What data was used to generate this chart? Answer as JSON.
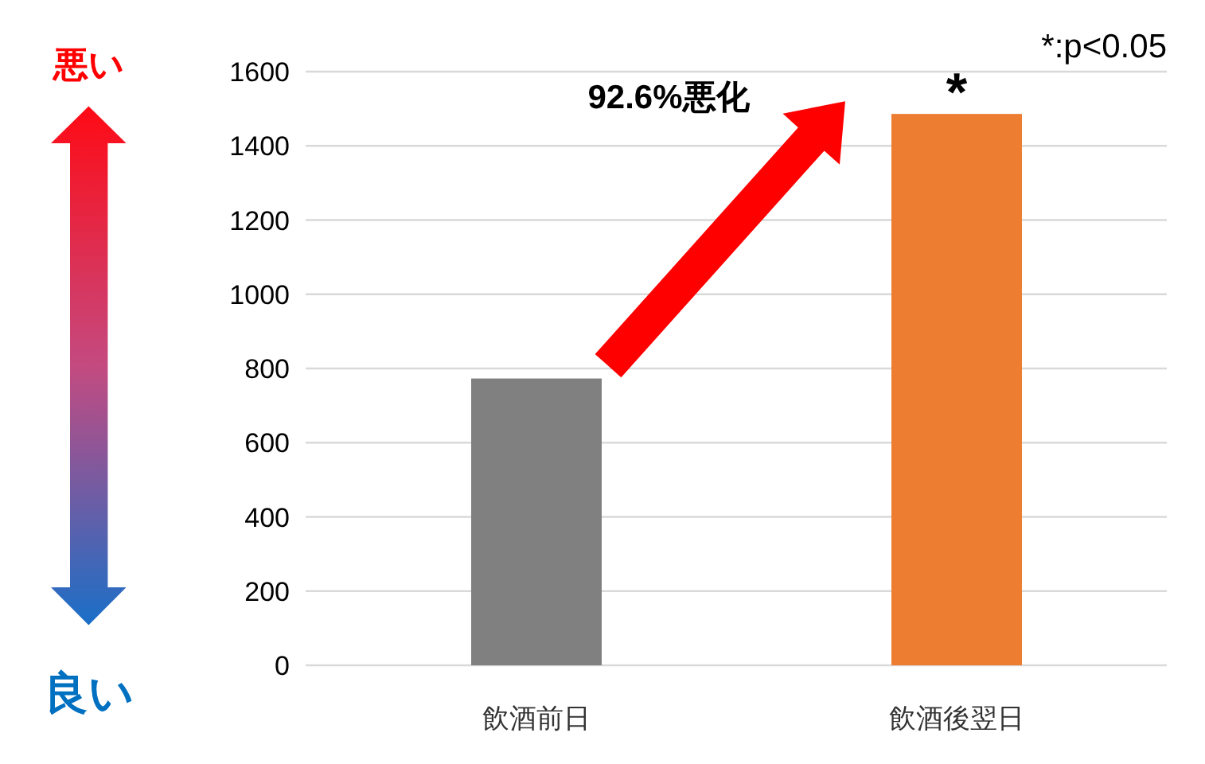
{
  "chart_data": {
    "type": "bar",
    "categories": [
      "飲酒前日",
      "飲酒後翌日"
    ],
    "colors": [
      "#808080",
      "#ed7d31"
    ],
    "values": [
      773,
      1486
    ],
    "ylim": [
      0,
      1600
    ],
    "yticks": [
      0,
      200,
      400,
      600,
      800,
      1000,
      1200,
      1400,
      1600
    ],
    "grid": "y",
    "annotations": [
      "92.6%悪化",
      {
        "text": "*",
        "x": "飲酒後翌日",
        "y": 1486
      },
      "*:p<0.05",
      "悪い",
      "良い"
    ]
  }
}
